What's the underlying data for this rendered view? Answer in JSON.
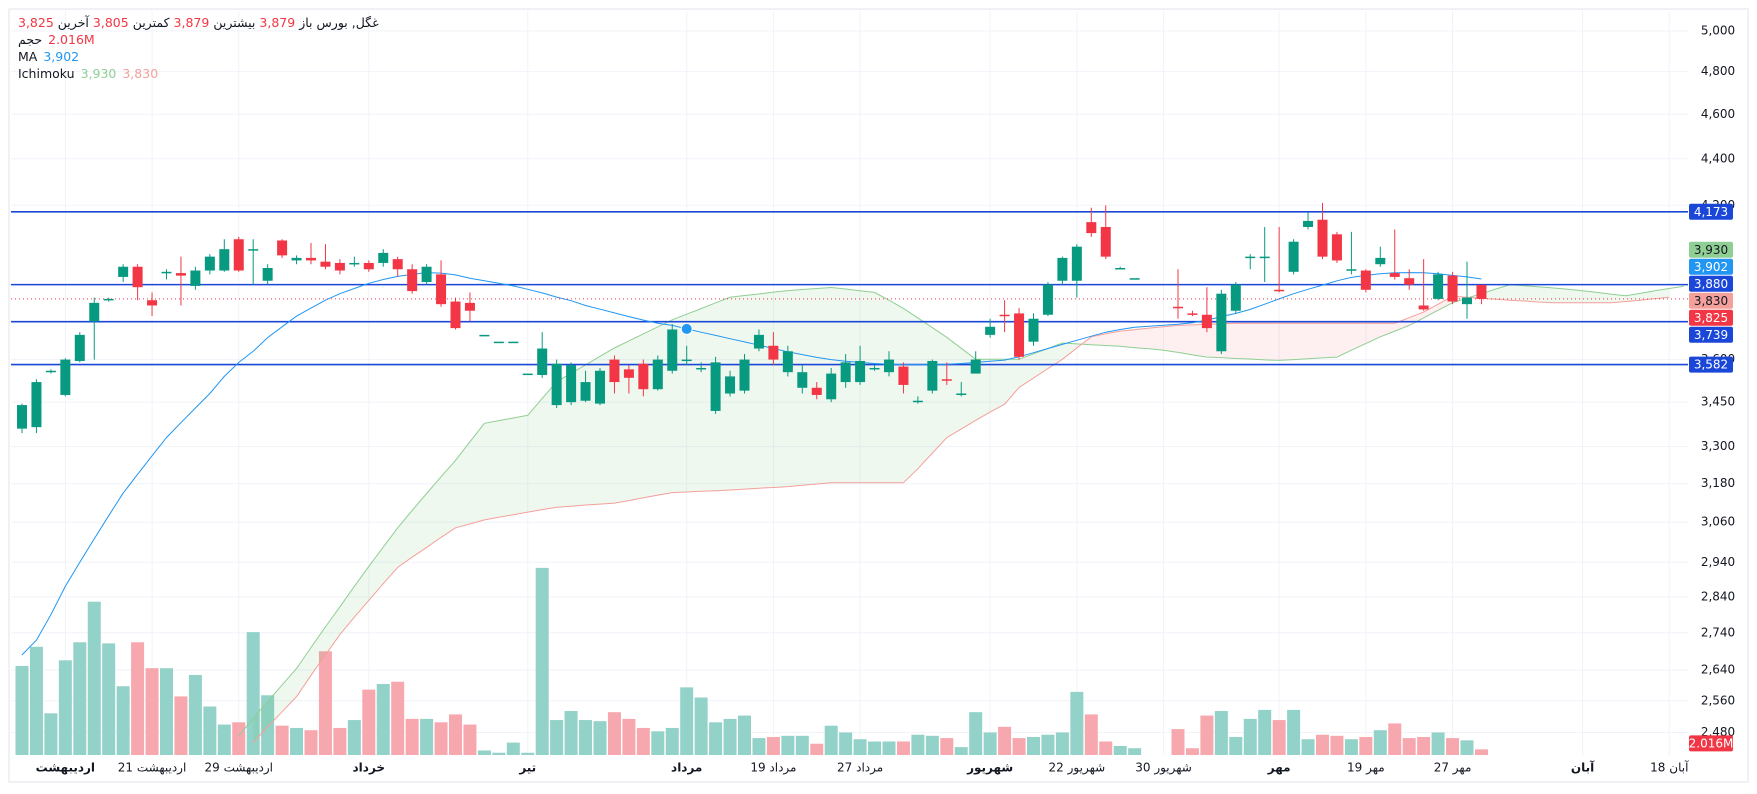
{
  "chart_data": {
    "type": "candlestick",
    "symbol": "غگل, بورس",
    "header_fields": [
      {
        "name": "باز",
        "value": 3879,
        "value_label": "3,879"
      },
      {
        "name": "بیشترین",
        "value": 3879,
        "value_label": "3,879"
      },
      {
        "name": "کمترین",
        "value": 3805,
        "value_label": "3,805"
      },
      {
        "name": "آخرین",
        "value": 3825,
        "value_label": "3,825"
      }
    ],
    "log_scale": true,
    "grid": true,
    "up_color": "#089981",
    "down_color": "#f23645",
    "ylim": [
      2425,
      5100
    ],
    "yticks": [
      {
        "value": 5000,
        "label": "5,000"
      },
      {
        "value": 4800,
        "label": "4,800"
      },
      {
        "value": 4600,
        "label": "4,600"
      },
      {
        "value": 4400,
        "label": "4,400"
      },
      {
        "value": 4200,
        "label": "4,200"
      },
      {
        "value": 3600,
        "label": "3,600"
      },
      {
        "value": 3450,
        "label": "3,450"
      },
      {
        "value": 3300,
        "label": "3,300"
      },
      {
        "value": 3180,
        "label": "3,180"
      },
      {
        "value": 3060,
        "label": "3,060"
      },
      {
        "value": 2940,
        "label": "2,940"
      },
      {
        "value": 2840,
        "label": "2,840"
      },
      {
        "value": 2740,
        "label": "2,740"
      },
      {
        "value": 2640,
        "label": "2,640"
      },
      {
        "value": 2560,
        "label": "2,560"
      },
      {
        "value": 2480,
        "label": "2,480"
      }
    ],
    "categories": [
      null,
      null,
      null,
      "اردیبهشت",
      null,
      null,
      null,
      null,
      null,
      "21 اردیبهشت",
      null,
      null,
      null,
      null,
      null,
      "29 اردیبهشت",
      null,
      null,
      null,
      null,
      null,
      null,
      null,
      null,
      "خرداد",
      null,
      null,
      null,
      null,
      null,
      null,
      null,
      null,
      null,
      null,
      "تیر",
      null,
      null,
      null,
      null,
      null,
      null,
      null,
      null,
      null,
      null,
      "مرداد",
      null,
      null,
      null,
      null,
      null,
      "19 مرداد",
      null,
      null,
      null,
      null,
      null,
      "27 مرداد",
      null,
      null,
      null,
      null,
      null,
      null,
      null,
      null,
      "شهریور",
      null,
      null,
      null,
      null,
      null,
      "22 شهریور",
      null,
      null,
      null,
      null,
      null,
      "30 شهریور",
      null,
      null,
      null,
      null,
      null,
      null,
      null,
      "مهر",
      null,
      null,
      null,
      null,
      null,
      "19 مهر",
      null,
      null,
      null,
      null,
      null,
      "27 مهر",
      null,
      null,
      null,
      null,
      null,
      null,
      null,
      null,
      "آبان",
      null,
      null,
      null,
      null,
      null,
      "18 آبان",
      null
    ],
    "ohlc": {
      "open": [
        3360,
        3365,
        3555,
        3475,
        3595,
        3740,
        3820,
        3910,
        3950,
        3820,
        3925,
        3925,
        3875,
        3935,
        3935,
        4060,
        4015,
        3895,
        4055,
        3975,
        3985,
        3970,
        3965,
        3960,
        3965,
        3965,
        3980,
        3940,
        3890,
        3920,
        3815,
        3810,
        3690,
        3665,
        3665,
        3550,
        3545,
        3440,
        3450,
        3455,
        3445,
        3600,
        3565,
        3585,
        3495,
        3560,
        3600,
        3570,
        3420,
        3480,
        3490,
        3640,
        3650,
        3555,
        3500,
        3500,
        3460,
        3520,
        3520,
        3570,
        3555,
        3575,
        3455,
        3490,
        3530,
        3480,
        3550,
        3690,
        3765,
        3770,
        3665,
        3765,
        3895,
        3895,
        4130,
        4110,
        3945,
        3905,
        null,
        null,
        3795,
        3770,
        3765,
        3630,
        3780,
        3990,
        3985,
        3860,
        3930,
        4110,
        4140,
        4080,
        3940,
        3935,
        3960,
        3925,
        3905,
        3800,
        3825,
        3915,
        3805,
        3879,
        null,
        null,
        null,
        null,
        null,
        null,
        null,
        null,
        null,
        null,
        null,
        null,
        null,
        null
      ],
      "high": [
        3445,
        3530,
        3565,
        3605,
        3700,
        3830,
        3830,
        3960,
        3960,
        3850,
        3940,
        3990,
        3950,
        4000,
        4060,
        4070,
        4060,
        3960,
        4060,
        3995,
        4045,
        4040,
        3980,
        3990,
        3975,
        4020,
        3990,
        3960,
        3960,
        3975,
        3830,
        3850,
        3690,
        3665,
        3665,
        3550,
        3700,
        3600,
        3590,
        3560,
        3570,
        3615,
        3580,
        3600,
        3615,
        3730,
        3650,
        3590,
        3610,
        3560,
        3620,
        3710,
        3700,
        3650,
        3580,
        3520,
        3570,
        3620,
        3650,
        3580,
        3630,
        3590,
        3470,
        3600,
        3590,
        3520,
        3630,
        3750,
        3820,
        3790,
        3770,
        3890,
        3990,
        4040,
        4190,
        4200,
        3950,
        3905,
        null,
        null,
        3940,
        3780,
        3870,
        3860,
        3890,
        4000,
        4110,
        4110,
        4060,
        4170,
        4210,
        4090,
        4090,
        3940,
        4030,
        4100,
        3940,
        3980,
        3930,
        3930,
        3970,
        3879,
        null,
        null,
        null,
        null,
        null,
        null,
        null,
        null,
        null,
        null,
        null,
        null,
        null,
        null
      ],
      "low": [
        3345,
        3345,
        3550,
        3470,
        3590,
        3600,
        3815,
        3890,
        3820,
        3760,
        3900,
        3800,
        3860,
        3920,
        3930,
        3930,
        3880,
        3880,
        3985,
        3960,
        3960,
        3940,
        3920,
        3950,
        3930,
        3950,
        3910,
        3845,
        3880,
        3795,
        3710,
        3740,
        3690,
        3665,
        3665,
        3550,
        3535,
        3430,
        3440,
        3450,
        3440,
        3480,
        3480,
        3470,
        3490,
        3550,
        3580,
        3555,
        3410,
        3470,
        3480,
        3630,
        3580,
        3540,
        3480,
        3460,
        3450,
        3500,
        3510,
        3560,
        3540,
        3480,
        3445,
        3480,
        3510,
        3470,
        3550,
        3680,
        3700,
        3600,
        3650,
        3760,
        3880,
        3830,
        4070,
        3980,
        3940,
        3905,
        null,
        null,
        3750,
        3760,
        3700,
        3620,
        3770,
        3940,
        3890,
        3850,
        3920,
        4100,
        3980,
        3965,
        3920,
        3850,
        3950,
        3900,
        3860,
        3780,
        3820,
        3805,
        3750,
        3805,
        null,
        null,
        null,
        null,
        null,
        null,
        null,
        null,
        null,
        null,
        null,
        null,
        null,
        null
      ],
      "close": [
        3440,
        3520,
        3560,
        3600,
        3690,
        3810,
        3825,
        3950,
        3870,
        3800,
        3930,
        3915,
        3935,
        3990,
        4020,
        3935,
        4020,
        3945,
        3995,
        3985,
        3975,
        3950,
        3935,
        3965,
        3940,
        4005,
        3940,
        3855,
        3950,
        3805,
        3715,
        3780,
        3690,
        3665,
        3665,
        3550,
        3640,
        3585,
        3580,
        3520,
        3560,
        3520,
        3535,
        3495,
        3600,
        3710,
        3600,
        3570,
        3590,
        3540,
        3600,
        3690,
        3600,
        3630,
        3555,
        3475,
        3550,
        3590,
        3595,
        3570,
        3600,
        3510,
        3455,
        3595,
        3525,
        3480,
        3600,
        3720,
        3760,
        3610,
        3750,
        3880,
        3985,
        4030,
        4085,
        3990,
        3945,
        3905,
        null,
        null,
        3790,
        3765,
        3715,
        3845,
        3880,
        3990,
        3990,
        3855,
        4050,
        4135,
        3990,
        3975,
        3940,
        3860,
        3985,
        3910,
        3880,
        3785,
        3920,
        3815,
        3830,
        3825,
        null,
        null,
        null,
        null,
        null,
        null,
        null,
        null,
        null,
        null,
        null,
        null,
        null,
        null
      ],
      "close_label": "3,825"
    },
    "volume": {
      "name": "حجم",
      "value": 2.016,
      "value_label": "2.016M",
      "up_color": "#92d2c8",
      "down_color": "#f7a8ae",
      "ylim": [
        0,
        264
      ],
      "values": [
        31.6,
        38.4,
        14.8,
        33.6,
        40,
        54.4,
        39.6,
        24.4,
        40,
        30.8,
        30.8,
        20.8,
        28.4,
        17.2,
        10.8,
        11.6,
        43.6,
        21.2,
        10.4,
        9.6,
        8.8,
        36.8,
        9.6,
        12.4,
        23.2,
        25.2,
        26,
        12.8,
        12.8,
        11.6,
        14.4,
        10.8,
        1.6,
        0.8,
        4.4,
        0.8,
        66.4,
        12.4,
        15.6,
        12.4,
        12,
        15.2,
        12.8,
        9.6,
        8.4,
        9.6,
        24,
        20.4,
        11.6,
        12.8,
        14,
        6,
        6.4,
        6.8,
        6.8,
        4,
        10.4,
        8,
        5.6,
        4.8,
        4.8,
        4.8,
        7.2,
        6.8,
        6,
        2.8,
        15.2,
        8,
        10,
        6,
        6.4,
        7.2,
        8,
        22.4,
        14.4,
        4.8,
        3.2,
        2.4,
        null,
        null,
        9.2,
        2.4,
        14,
        15.6,
        6.4,
        12.8,
        16,
        12.4,
        16,
        5.6,
        7.2,
        6.8,
        5.6,
        6.4,
        8.8,
        11.2,
        6,
        6.4,
        8,
        6,
        5.2,
        2.016,
        null,
        null,
        null,
        null,
        null,
        null,
        null,
        null,
        null,
        null,
        null,
        null,
        null,
        null
      ]
    },
    "ma": {
      "name": "MA",
      "color": "#2196f3",
      "value": 3902,
      "value_label": "3,902",
      "values": [
        2680,
        2720,
        2790,
        2870,
        2940,
        3010,
        3080,
        3150,
        3210,
        3270,
        3330,
        3380,
        3430,
        3480,
        3540,
        3590,
        3630,
        3680,
        3720,
        3760,
        3790,
        3820,
        3845,
        3865,
        3885,
        3900,
        3912,
        3920,
        3927,
        3925,
        3918,
        3905,
        3895,
        3885,
        3875,
        3862,
        3848,
        3832,
        3818,
        3800,
        3786,
        3772,
        3758,
        3745,
        3733,
        3725,
        3712,
        3700,
        3688,
        3676,
        3664,
        3652,
        3640,
        3628,
        3618,
        3608,
        3600,
        3594,
        3590,
        3586,
        3583,
        3582,
        3582,
        3582,
        3583,
        3586,
        3590,
        3594,
        3598,
        3610,
        3625,
        3640,
        3655,
        3670,
        3685,
        3700,
        3710,
        3718,
        3722,
        3726,
        3729,
        3735,
        3745,
        3758,
        3770,
        3785,
        3805,
        3825,
        3845,
        3862,
        3878,
        3895,
        3908,
        3916,
        3922,
        3926,
        3927,
        3926,
        3922,
        3916,
        3910,
        3902,
        null,
        null,
        null,
        null,
        null,
        null,
        null,
        null,
        null,
        null,
        null,
        null,
        null,
        null
      ]
    },
    "ichimoku": {
      "name": "Ichimoku",
      "up_fill": "rgba(76,175,80,0.09)",
      "down_fill": "rgba(242,54,69,0.08)",
      "spans": [
        {
          "color": "#8fcf93",
          "value": 3930,
          "value_label": "3,930",
          "badge_text": "#131722",
          "values": [
            null,
            null,
            null,
            null,
            null,
            null,
            null,
            null,
            null,
            null,
            null,
            null,
            null,
            null,
            null,
            2472,
            2515,
            2558,
            2601,
            2644,
            2700,
            2756,
            2812,
            2870,
            2928,
            2985,
            3043,
            3096,
            3149,
            3202,
            3255,
            3316,
            3378,
            3387,
            3396,
            3405,
            3463,
            3521,
            3551,
            3581,
            3612,
            3642,
            3668,
            3694,
            3720,
            3746,
            3767,
            3788,
            3810,
            3831,
            3838,
            3844,
            3851,
            3857,
            3861,
            3865,
            3869,
            3863,
            3856,
            3850,
            3820,
            3789,
            3753,
            3717,
            3681,
            3641,
            3601,
            3601,
            3601,
            3601,
            3621,
            3640,
            3660,
            3657,
            3654,
            3651,
            3648,
            3643,
            3639,
            3634,
            3626,
            3617,
            3609,
            3607,
            3604,
            3602,
            3599,
            3597,
            3600,
            3603,
            3606,
            3609,
            3634,
            3658,
            3683,
            3704,
            3725,
            3753,
            3782,
            3810,
            3828,
            3845,
            3863,
            3880,
            3876,
            3871,
            3867,
            3862,
            3856,
            3850,
            3843,
            3837,
            3846,
            3856,
            3865,
            3874
          ]
        },
        {
          "color": "#f4a09b",
          "value": 3830,
          "value_label": "3,830",
          "badge_text": "#131722",
          "values": [
            null,
            null,
            null,
            null,
            null,
            null,
            null,
            null,
            null,
            null,
            null,
            null,
            null,
            null,
            null,
            null,
            2455,
            2494,
            2532,
            2571,
            2626,
            2680,
            2735,
            2783,
            2830,
            2878,
            2925,
            2955,
            2984,
            3014,
            3043,
            3055,
            3067,
            3075,
            3083,
            3091,
            3099,
            3106,
            3109,
            3113,
            3116,
            3119,
            3127,
            3136,
            3144,
            3152,
            3154,
            3156,
            3158,
            3160,
            3163,
            3166,
            3168,
            3171,
            3175,
            3179,
            3183,
            3183,
            3183,
            3183,
            3183,
            3183,
            3228,
            3279,
            3330,
            3359,
            3388,
            3416,
            3443,
            3501,
            3534,
            3568,
            3601,
            3642,
            3683,
            3694,
            3704,
            3709,
            3715,
            3720,
            3725,
            3727,
            3729,
            3731,
            3733,
            3733,
            3733,
            3733,
            3733,
            3733,
            3733,
            3733,
            3733,
            3733,
            3733,
            3733,
            3754,
            3775,
            3805,
            3835,
            3831,
            3827,
            3824,
            3820,
            3817,
            3813,
            3810,
            3810,
            3810,
            3810,
            3810,
            3815,
            3820,
            3826,
            3831
          ]
        }
      ]
    },
    "hlines": [
      {
        "value": 4173,
        "label": "4,173"
      },
      {
        "value": 3880,
        "label": "3,880"
      },
      {
        "value": 3739,
        "label": "3,739"
      },
      {
        "value": 3582,
        "label": "3,582"
      }
    ],
    "hline_color": "#1a47d8"
  }
}
